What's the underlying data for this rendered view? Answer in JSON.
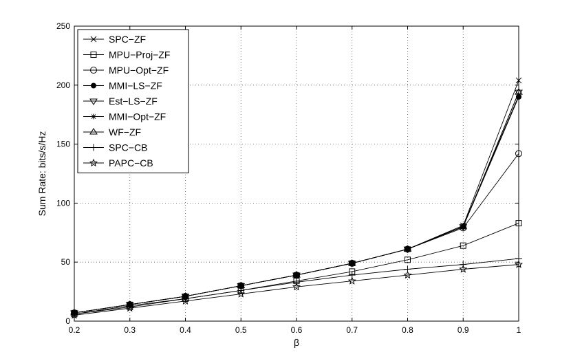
{
  "chart_data": {
    "type": "line",
    "xlabel": "β",
    "ylabel": "Sum Rate: bits/s/Hz",
    "xlim": [
      0.2,
      1
    ],
    "ylim": [
      0,
      250
    ],
    "xticks": [
      0.2,
      0.3,
      0.4,
      0.5,
      0.6,
      0.7,
      0.8,
      0.9,
      1
    ],
    "xtick_labels": [
      "0.2",
      "0.3",
      "0.4",
      "0.5",
      "0.6",
      "0.7",
      "0.8",
      "0.9",
      "1"
    ],
    "yticks": [
      0,
      50,
      100,
      150,
      200,
      250
    ],
    "ytick_labels": [
      "0",
      "50",
      "100",
      "150",
      "200",
      "250"
    ],
    "grid": true,
    "grid_style": "dotted",
    "legend_position": "top-left",
    "x": [
      0.2,
      0.3,
      0.4,
      0.5,
      0.6,
      0.7,
      0.8,
      0.9,
      1
    ],
    "series": [
      {
        "name": "SPC−ZF",
        "marker": "x",
        "values": [
          7,
          14,
          21,
          30,
          39,
          49,
          61,
          81,
          204
        ]
      },
      {
        "name": "MPU−Proj−ZF",
        "marker": "square",
        "values": [
          6,
          12,
          19,
          26,
          34,
          42,
          52,
          64,
          83
        ]
      },
      {
        "name": "MPU−Opt−ZF",
        "marker": "circle",
        "values": [
          7,
          14,
          21,
          30,
          39,
          49,
          61,
          79,
          142
        ]
      },
      {
        "name": "MMI−LS−ZF",
        "marker": "dot",
        "values": [
          7,
          14,
          21,
          30,
          39,
          49,
          61,
          80,
          190
        ]
      },
      {
        "name": "Est−LS−ZF",
        "marker": "triangle-down",
        "values": [
          7,
          14,
          21,
          30,
          39,
          49,
          61,
          80,
          194
        ]
      },
      {
        "name": "MMI−Opt−ZF",
        "marker": "asterisk",
        "values": [
          7,
          14,
          21,
          30,
          39,
          49,
          61,
          81,
          191
        ]
      },
      {
        "name": "WF−ZF",
        "marker": "triangle-up",
        "values": [
          7,
          14,
          21,
          30,
          39,
          49,
          61,
          80,
          194
        ]
      },
      {
        "name": "SPC−CB",
        "marker": "plus",
        "values": [
          6,
          13,
          19,
          26,
          33,
          39,
          44,
          48,
          53
        ]
      },
      {
        "name": "PAPC−CB",
        "marker": "star",
        "values": [
          5,
          11,
          17,
          23,
          29,
          34,
          39,
          44,
          48
        ]
      }
    ]
  }
}
